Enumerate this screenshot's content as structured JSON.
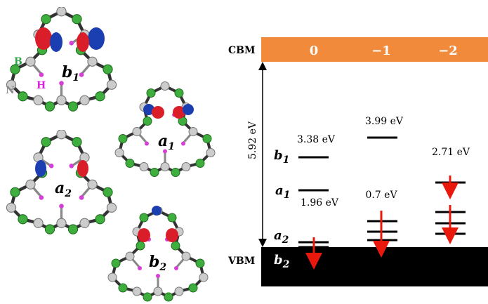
{
  "molecules": [
    {
      "letter": "b",
      "sub": "1"
    },
    {
      "letter": "a",
      "sub": "1"
    },
    {
      "letter": "a",
      "sub": "2"
    },
    {
      "letter": "b",
      "sub": "2"
    }
  ],
  "atoms": {
    "boron": "B",
    "hydrogen": "H",
    "nitrogen": "N"
  },
  "diagram": {
    "cbm": "CBM",
    "vbm": "VBM",
    "charges": [
      "0",
      "−1",
      "−2"
    ],
    "gap": "5.92 eV",
    "energies": [
      "3.38 eV",
      "1.96 eV",
      "3.99 eV",
      "0.7 eV",
      "2.71 eV"
    ],
    "states": [
      {
        "letter": "b",
        "sub": "1"
      },
      {
        "letter": "a",
        "sub": "1"
      },
      {
        "letter": "a",
        "sub": "2"
      },
      {
        "letter": "b",
        "sub": "2"
      }
    ]
  }
}
